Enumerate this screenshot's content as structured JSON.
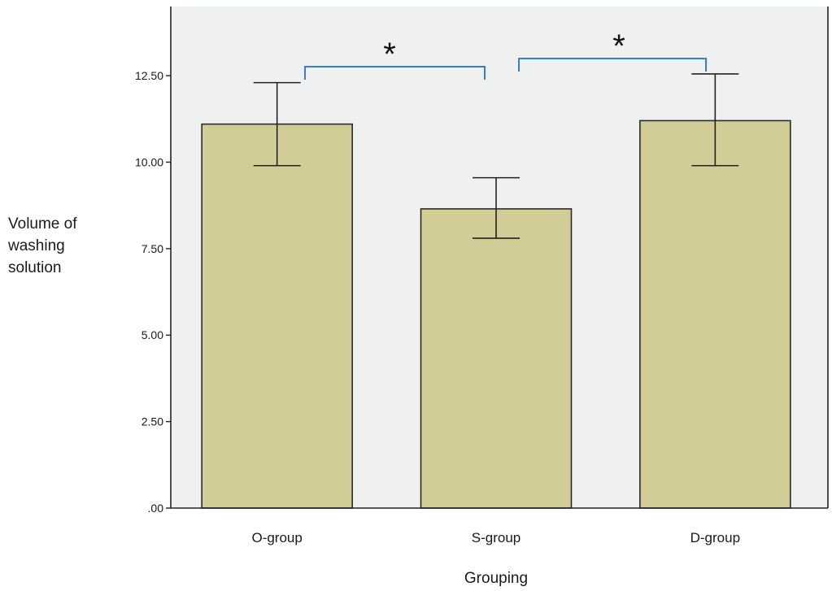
{
  "chart_data": {
    "type": "bar",
    "title": "",
    "xlabel": "Grouping",
    "ylabel_lines": [
      "Volume of",
      "washing",
      "solution"
    ],
    "categories": [
      "O-group",
      "S-group",
      "D-group"
    ],
    "values": [
      11.1,
      8.65,
      11.2
    ],
    "error_low": [
      9.9,
      7.8,
      9.9
    ],
    "error_high": [
      12.3,
      9.55,
      12.55
    ],
    "ylim": [
      0,
      14.5
    ],
    "yticks": [
      0,
      2.5,
      5,
      7.5,
      10,
      12.5
    ],
    "ytick_labels": [
      ".00",
      "2.50",
      "5.00",
      "7.50",
      "10.00",
      "12.50"
    ],
    "grid": false,
    "annotations": [
      {
        "label": "*",
        "from": "O-group",
        "to": "S-group"
      },
      {
        "label": "*",
        "from": "S-group",
        "to": "D-group"
      }
    ],
    "colors": {
      "bar_fill": "#d2cd96",
      "bar_stroke": "#2a2a2a",
      "plot_background": "#eff1f1",
      "bracket": "#3a7bd5"
    }
  }
}
